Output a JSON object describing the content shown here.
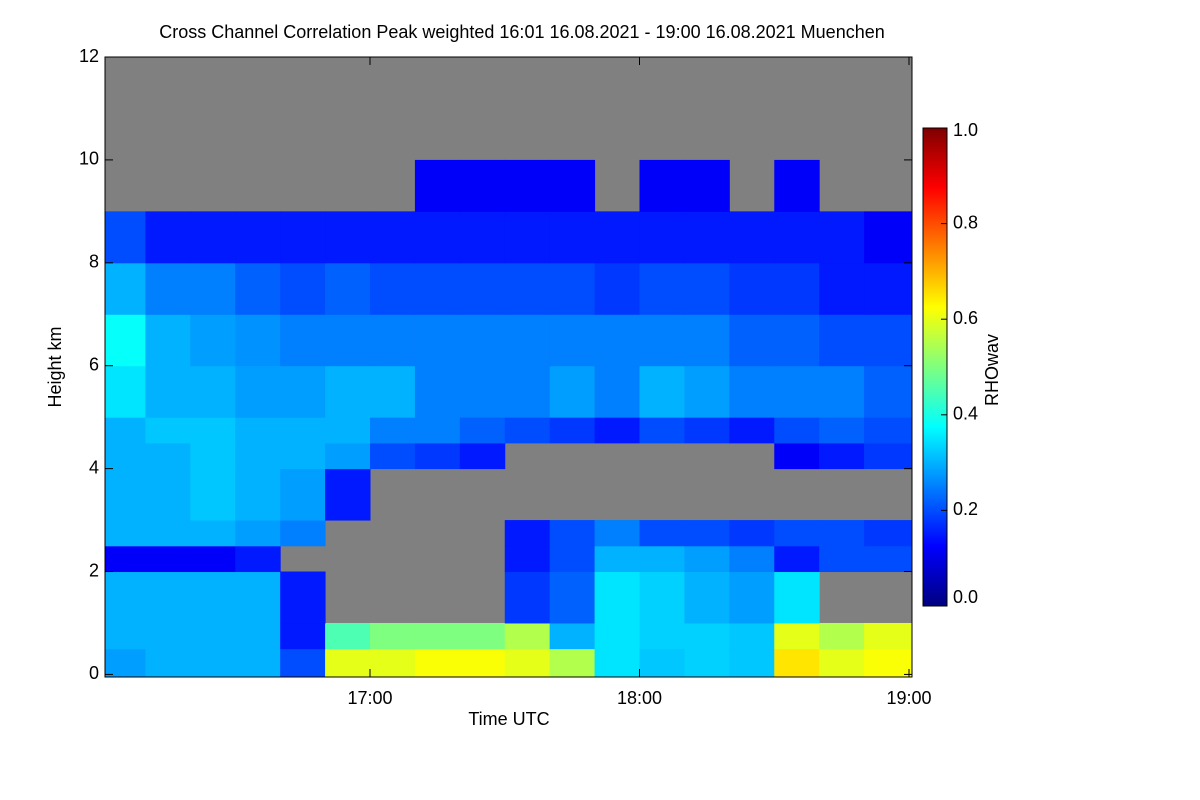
{
  "chart_data": {
    "type": "heatmap",
    "title": "Cross Channel Correlation Peak weighted   16:01 16.08.2021 - 19:00 16.08.2021 Muenchen",
    "xlabel": "Time UTC",
    "ylabel": "Height km",
    "colorbar_label": "RHOwav",
    "xlim": [
      16.0167,
      19.0111
    ],
    "ylim": [
      -0.05,
      12
    ],
    "xticks": [
      {
        "value": 17,
        "label": "17:00"
      },
      {
        "value": 18,
        "label": "18:00"
      },
      {
        "value": 19,
        "label": "19:00"
      }
    ],
    "yticks": [
      0,
      2,
      4,
      6,
      8,
      10,
      12
    ],
    "zlim": [
      0,
      1
    ],
    "zticks": [
      {
        "value": 0,
        "label": "0.0"
      },
      0.2,
      0.4,
      0.6,
      0.8,
      {
        "value": 1,
        "label": "1.0"
      }
    ],
    "colormap": [
      "#00007f",
      "#0000ff",
      "#007fff",
      "#00ffff",
      "#7fff7f",
      "#ffff00",
      "#ff7f00",
      "#ff0000",
      "#7f0000"
    ],
    "missing_color": "#808080",
    "xbins": [
      16.0167,
      16.1667,
      16.3333,
      16.5,
      16.6667,
      16.8333,
      17,
      17.1667,
      17.3333,
      17.5,
      17.6667,
      17.8333,
      18,
      18.1667,
      18.3333,
      18.5,
      18.6667,
      18.8333,
      19.0111
    ],
    "ybins": [
      -0.05,
      0.5,
      1,
      2,
      2.5,
      3,
      4,
      4.5,
      5,
      6,
      7,
      8,
      9,
      10,
      12
    ],
    "z": [
      [
        0.28,
        0.3,
        0.3,
        0.3,
        0.2,
        0.6,
        0.6,
        0.62,
        0.62,
        0.6,
        0.55,
        0.35,
        0.32,
        0.33,
        0.32,
        0.65,
        0.6,
        0.62
      ],
      [
        0.3,
        0.3,
        0.3,
        0.3,
        0.15,
        0.45,
        0.5,
        0.5,
        0.5,
        0.55,
        0.3,
        0.35,
        0.33,
        0.33,
        0.32,
        0.6,
        0.55,
        0.6
      ],
      [
        0.3,
        0.3,
        0.3,
        0.3,
        0.15,
        null,
        null,
        null,
        null,
        0.18,
        0.22,
        0.35,
        0.33,
        0.3,
        0.28,
        0.35,
        null,
        null
      ],
      [
        0.12,
        0.12,
        0.12,
        0.15,
        null,
        null,
        null,
        null,
        null,
        0.15,
        0.2,
        0.3,
        0.3,
        0.28,
        0.25,
        0.15,
        0.2,
        0.2
      ],
      [
        0.3,
        0.3,
        0.3,
        0.28,
        0.25,
        null,
        null,
        null,
        null,
        0.15,
        0.2,
        0.25,
        0.2,
        0.2,
        0.18,
        0.2,
        0.2,
        0.18
      ],
      [
        0.3,
        0.3,
        0.32,
        0.3,
        0.28,
        0.15,
        null,
        null,
        null,
        null,
        null,
        null,
        null,
        null,
        null,
        null,
        null,
        null
      ],
      [
        0.3,
        0.3,
        0.32,
        0.3,
        0.3,
        0.28,
        0.2,
        0.18,
        0.15,
        null,
        null,
        null,
        null,
        null,
        null,
        0.12,
        0.15,
        0.18
      ],
      [
        0.3,
        0.32,
        0.32,
        0.3,
        0.3,
        0.3,
        0.25,
        0.25,
        0.22,
        0.2,
        0.18,
        0.15,
        0.2,
        0.18,
        0.15,
        0.2,
        0.22,
        0.2
      ],
      [
        0.35,
        0.3,
        0.3,
        0.28,
        0.28,
        0.3,
        0.3,
        0.25,
        0.25,
        0.25,
        0.28,
        0.25,
        0.3,
        0.28,
        0.25,
        0.25,
        0.25,
        0.22
      ],
      [
        0.38,
        0.3,
        0.28,
        0.27,
        0.25,
        0.25,
        0.25,
        0.25,
        0.25,
        0.25,
        0.25,
        0.25,
        0.25,
        0.25,
        0.22,
        0.22,
        0.2,
        0.2
      ],
      [
        0.3,
        0.25,
        0.25,
        0.22,
        0.2,
        0.22,
        0.2,
        0.2,
        0.2,
        0.2,
        0.2,
        0.18,
        0.2,
        0.2,
        0.18,
        0.18,
        0.15,
        0.15
      ],
      [
        0.2,
        0.15,
        0.15,
        0.15,
        0.15,
        0.15,
        0.15,
        0.15,
        0.15,
        0.15,
        0.15,
        0.15,
        0.15,
        0.15,
        0.15,
        0.15,
        0.15,
        0.12
      ],
      [
        null,
        null,
        null,
        null,
        null,
        null,
        null,
        0.12,
        0.12,
        0.12,
        0.12,
        null,
        0.12,
        0.12,
        null,
        0.12,
        null,
        null
      ],
      [
        null,
        null,
        null,
        null,
        null,
        null,
        null,
        null,
        null,
        null,
        null,
        null,
        null,
        null,
        null,
        null,
        null,
        null
      ]
    ]
  }
}
